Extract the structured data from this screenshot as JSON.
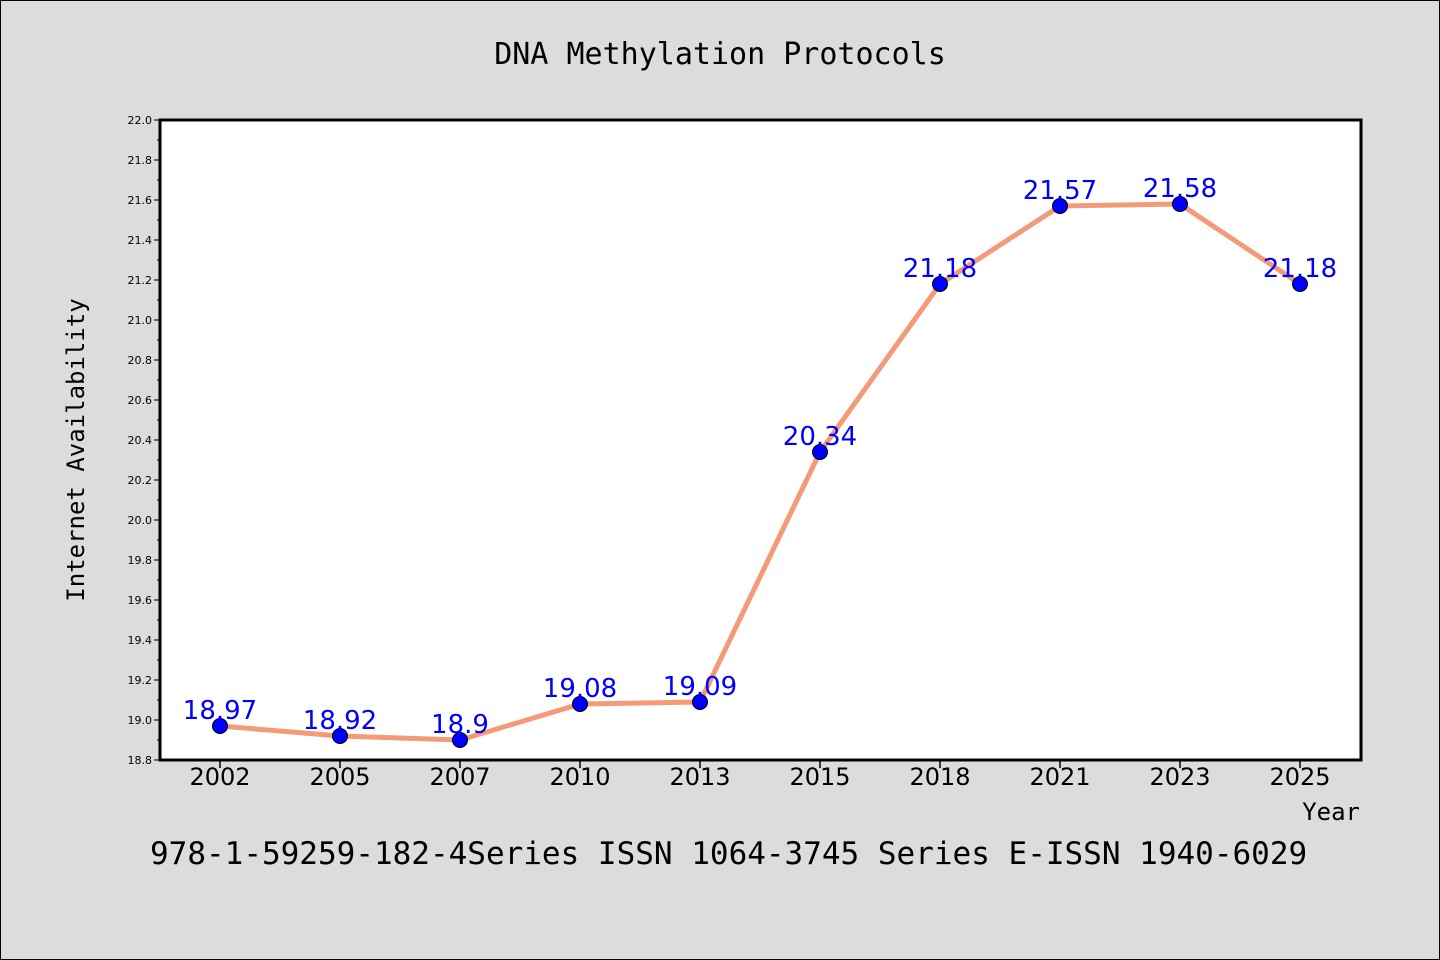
{
  "chart_data": {
    "type": "line",
    "title": "DNA Methylation Protocols",
    "xlabel": "Year",
    "ylabel": "Internet Availability",
    "categories": [
      "2002",
      "2005",
      "2007",
      "2010",
      "2013",
      "2015",
      "2018",
      "2021",
      "2023",
      "2025"
    ],
    "series": [
      {
        "values": [
          18.97,
          18.92,
          18.9,
          19.08,
          19.09,
          20.34,
          21.18,
          21.57,
          21.58,
          21.18
        ]
      }
    ],
    "data_labels": [
      "18.97",
      "18.92",
      "18.9",
      "19.08",
      "19.09",
      "20.34",
      "21.18",
      "21.57",
      "21.58",
      "21.18"
    ],
    "ylim": [
      18.8,
      22.0
    ],
    "yticks": [
      "18.8",
      "19.0",
      "19.2",
      "19.4",
      "19.6",
      "19.8",
      "20.0",
      "20.2",
      "20.4",
      "20.6",
      "20.8",
      "21.0",
      "21.2",
      "21.4",
      "21.6",
      "21.8",
      "22.0"
    ],
    "grid": false,
    "line_color": "#f59a78",
    "marker_color": "#0000ff",
    "label_color": "#0000ff",
    "background_color": "#dcdcdc",
    "plot_background": "#ffffff"
  },
  "footer": {
    "text": "978-1-59259-182-4Series ISSN 1064-3745 Series E-ISSN 1940-6029"
  }
}
